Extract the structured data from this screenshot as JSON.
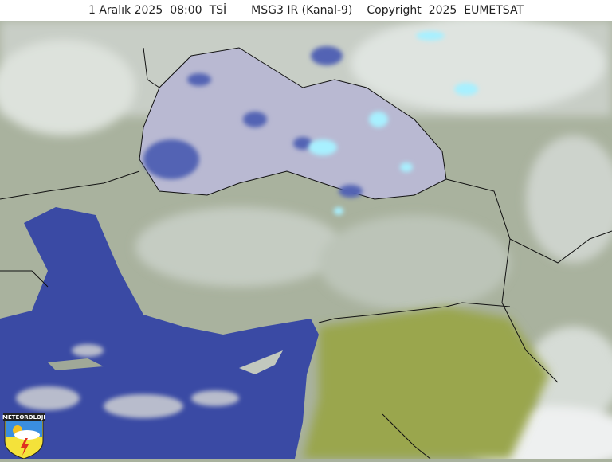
{
  "header": {
    "date": "1 Aralık 2025",
    "time": "08:00",
    "timezone": "TSİ",
    "product": "MSG3 IR (Kanal-9)",
    "copyright": "Copyright  2025  EUMETSAT"
  },
  "logo": {
    "text": "METEOROLOJI",
    "icon": "lightning-sun-cloud-shield-icon"
  },
  "colors": {
    "land": "#a9b29e",
    "cloud": "#e8ecec",
    "black_sea": "#b9b9d2",
    "sea_blue": "#3a4aa4",
    "desert_olive": "#9aa64e",
    "cold_cloud_cyan": "#a8f0ff"
  }
}
